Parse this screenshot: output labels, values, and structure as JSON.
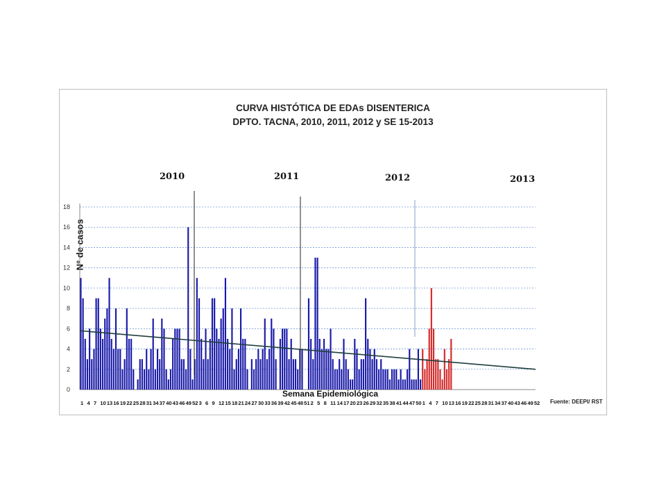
{
  "chart_data": {
    "type": "bar",
    "title": "CURVA HISTÓTICA DE EDAs DISENTERICA",
    "subtitle": "DPTO. TACNA,  2010, 2011, 2012 y SE 15-2013",
    "xlabel": "Semana Epidemiológica",
    "ylabel": "N° de casos",
    "ylim": [
      0,
      18
    ],
    "yticks": [
      0,
      2,
      4,
      6,
      8,
      10,
      12,
      14,
      16,
      18
    ],
    "grid": true,
    "source": "Fuente: DEEPI/ RST",
    "year_labels": [
      "2010",
      "2011",
      "2012",
      "2013"
    ],
    "x_tick_labels": [
      "1",
      "4",
      "7",
      "10",
      "13",
      "16",
      "19",
      "22",
      "25",
      "28",
      "31",
      "34",
      "37",
      "40",
      "43",
      "46",
      "49",
      "52",
      "3",
      "6",
      "9",
      "12",
      "15",
      "18",
      "21",
      "24",
      "27",
      "30",
      "33",
      "36",
      "39",
      "42",
      "45",
      "48",
      "51",
      "2",
      "5",
      "8",
      "11",
      "14",
      "17",
      "20",
      "23",
      "26",
      "29",
      "32",
      "35",
      "38",
      "41",
      "44",
      "47",
      "50",
      "1",
      "4",
      "7",
      "10",
      "13",
      "16",
      "19",
      "22",
      "25",
      "28",
      "31",
      "34",
      "37",
      "40",
      "43",
      "46",
      "49",
      "52"
    ],
    "series": [
      {
        "name": "2010",
        "color": "#1a1aa8",
        "values": [
          11,
          9,
          5,
          3,
          6,
          3,
          4,
          9,
          9,
          6,
          5,
          7,
          8,
          11,
          5,
          4,
          8,
          4,
          4,
          2,
          3,
          8,
          5,
          5,
          2,
          0,
          1,
          3,
          3,
          2,
          4,
          2,
          4,
          7,
          2,
          4,
          3,
          7,
          6,
          2,
          1,
          2,
          5,
          6,
          6,
          6,
          3,
          3,
          2,
          16,
          4,
          1
        ]
      },
      {
        "name": "2011",
        "color": "#1a1aa8",
        "values": [
          3,
          11,
          9,
          5,
          3,
          6,
          3,
          5,
          9,
          9,
          6,
          5,
          7,
          8,
          11,
          5,
          4,
          8,
          2,
          3,
          4,
          8,
          5,
          5,
          2,
          0,
          3,
          2,
          3,
          4,
          3,
          4,
          7,
          3,
          4,
          7,
          6,
          3,
          0,
          5,
          6,
          6,
          6,
          3,
          5,
          3,
          3,
          2,
          4,
          4
        ]
      },
      {
        "name": "2012",
        "color": "#1a1aa8",
        "values": [
          9,
          5,
          3,
          13,
          13,
          5,
          4,
          5,
          4,
          4,
          6,
          3,
          2,
          2,
          3,
          2,
          5,
          3,
          2,
          1,
          1,
          5,
          4,
          2,
          3,
          3,
          9,
          5,
          4,
          3,
          4,
          3,
          2,
          3,
          2,
          2,
          2,
          1,
          2,
          2,
          2,
          1,
          2,
          1,
          1,
          2,
          4,
          1,
          1,
          1,
          4,
          1
        ]
      },
      {
        "name": "2013",
        "color": "#d42a2a",
        "values": [
          4,
          2,
          3,
          6,
          10,
          6,
          3,
          3,
          2,
          1,
          4,
          2,
          3,
          5,
          0
        ]
      }
    ],
    "trend_line": {
      "color": "#1f3d3d",
      "start_value": 5.8,
      "end_value": 2.0
    },
    "year_separators": [
      {
        "label": "2010",
        "color": "#222222"
      },
      {
        "label": "2011",
        "color": "#222222"
      },
      {
        "label": "2012",
        "color": "#7fa0c8"
      }
    ]
  }
}
